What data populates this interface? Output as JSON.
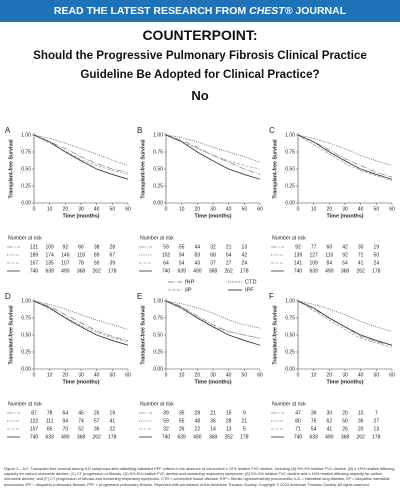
{
  "header": {
    "banner": [
      "READ THE LATEST RESEARCH FROM ",
      "CHEST®",
      " JOURNAL"
    ],
    "kicker": "COUNTERPOINT:",
    "title": "Should the Progressive Pulmonary Fibrosis Clinical Practice Guideline Be Adopted for Clinical Practice?",
    "answer": "No"
  },
  "chart_data": [
    {
      "type": "line",
      "label": "A",
      "ylabel": "Transplant-free Survival",
      "xlabel": "Time (months)",
      "risk_title": "Number at risk",
      "x": [
        0,
        10,
        20,
        30,
        40,
        50,
        60
      ],
      "xlim": [
        0,
        60
      ],
      "ylim": [
        0,
        1
      ],
      "xticks": [
        0,
        10,
        20,
        30,
        40,
        50,
        60
      ],
      "yticks": [
        {
          "value": 1,
          "label": "1.00"
        },
        {
          "value": 0.75,
          "label": "0.75"
        },
        {
          "value": 0.5,
          "label": "0.50"
        },
        {
          "value": 0.25,
          "label": "0.25"
        },
        {
          "value": 0,
          "label": "0.00"
        }
      ],
      "series": [
        {
          "name": "fHP",
          "color": "#7f8c99",
          "values": [
            1,
            0.9,
            0.8,
            0.68,
            0.58,
            0.5,
            0.45
          ],
          "at_risk": [
            121,
            109,
            92,
            66,
            38,
            28
          ]
        },
        {
          "name": "CTD",
          "color": "#55606b",
          "values": [
            1,
            0.95,
            0.88,
            0.8,
            0.72,
            0.63,
            0.55
          ],
          "at_risk": [
            189,
            174,
            146,
            118,
            89,
            67
          ]
        },
        {
          "name": "iIP",
          "color": "#9aa4ae",
          "values": [
            1,
            0.88,
            0.76,
            0.64,
            0.55,
            0.48,
            0.42
          ],
          "at_risk": [
            167,
            135,
            107,
            78,
            59,
            39
          ]
        },
        {
          "name": "IPF",
          "color": "#2e3338",
          "values": [
            1,
            0.9,
            0.75,
            0.62,
            0.5,
            0.42,
            0.35
          ],
          "at_risk": [
            740,
            639,
            490,
            368,
            262,
            178
          ]
        }
      ]
    },
    {
      "type": "line",
      "label": "B",
      "ylabel": "Transplant-free Survival",
      "xlabel": "Time (months)",
      "risk_title": "Number at risk",
      "x": [
        0,
        10,
        20,
        30,
        40,
        50,
        60
      ],
      "xlim": [
        0,
        60
      ],
      "ylim": [
        0,
        1
      ],
      "xticks": [
        0,
        10,
        20,
        30,
        40,
        50,
        60
      ],
      "yticks": [
        {
          "value": 1,
          "label": "1.00"
        },
        {
          "value": 0.75,
          "label": "0.75"
        },
        {
          "value": 0.5,
          "label": "0.50"
        },
        {
          "value": 0.25,
          "label": "0.25"
        },
        {
          "value": 0,
          "label": "0.00"
        }
      ],
      "series": [
        {
          "name": "fHP",
          "color": "#7f8c99",
          "values": [
            1,
            0.92,
            0.82,
            0.7,
            0.6,
            0.5,
            0.42
          ],
          "at_risk": [
            59,
            55,
            44,
            32,
            21,
            13
          ]
        },
        {
          "name": "CTD",
          "color": "#55606b",
          "values": [
            1,
            0.96,
            0.9,
            0.82,
            0.75,
            0.68,
            0.6
          ],
          "at_risk": [
            102,
            94,
            83,
            68,
            54,
            42
          ]
        },
        {
          "name": "iIP",
          "color": "#9aa4ae",
          "values": [
            1,
            0.9,
            0.8,
            0.7,
            0.62,
            0.55,
            0.5
          ],
          "at_risk": [
            64,
            54,
            43,
            37,
            27,
            24
          ]
        },
        {
          "name": "IPF",
          "color": "#2e3338",
          "values": [
            1,
            0.9,
            0.75,
            0.62,
            0.5,
            0.42,
            0.35
          ],
          "at_risk": [
            740,
            639,
            490,
            368,
            262,
            178
          ]
        }
      ]
    },
    {
      "type": "line",
      "label": "C",
      "ylabel": "Transplant-free Survival",
      "xlabel": "Time (months)",
      "risk_title": "Number at risk",
      "x": [
        0,
        10,
        20,
        30,
        40,
        50,
        60
      ],
      "xlim": [
        0,
        60
      ],
      "ylim": [
        0,
        1
      ],
      "xticks": [
        0,
        10,
        20,
        30,
        40,
        50,
        60
      ],
      "yticks": [
        {
          "value": 1,
          "label": "1.00"
        },
        {
          "value": 0.75,
          "label": "0.75"
        },
        {
          "value": 0.5,
          "label": "0.50"
        },
        {
          "value": 0.25,
          "label": "0.25"
        },
        {
          "value": 0,
          "label": "0.00"
        }
      ],
      "series": [
        {
          "name": "fHP",
          "color": "#7f8c99",
          "values": [
            1,
            0.9,
            0.78,
            0.65,
            0.55,
            0.45,
            0.38
          ],
          "at_risk": [
            92,
            77,
            60,
            42,
            30,
            19
          ]
        },
        {
          "name": "CTD",
          "color": "#55606b",
          "values": [
            1,
            0.95,
            0.88,
            0.8,
            0.7,
            0.62,
            0.55
          ],
          "at_risk": [
            139,
            127,
            110,
            92,
            71,
            50
          ]
        },
        {
          "name": "iIP",
          "color": "#9aa4ae",
          "values": [
            1,
            0.86,
            0.72,
            0.58,
            0.48,
            0.4,
            0.33
          ],
          "at_risk": [
            141,
            109,
            84,
            54,
            41,
            24
          ]
        },
        {
          "name": "IPF",
          "color": "#2e3338",
          "values": [
            1,
            0.9,
            0.75,
            0.62,
            0.5,
            0.42,
            0.35
          ],
          "at_risk": [
            740,
            639,
            490,
            368,
            262,
            178
          ]
        }
      ]
    },
    {
      "type": "line",
      "label": "D",
      "ylabel": "Transplant-free Survival",
      "xlabel": "Time (months)",
      "risk_title": "Number at risk",
      "x": [
        0,
        10,
        20,
        30,
        40,
        50,
        60
      ],
      "xlim": [
        0,
        60
      ],
      "ylim": [
        0,
        1
      ],
      "xticks": [
        0,
        10,
        20,
        30,
        40,
        50,
        60
      ],
      "yticks": [
        {
          "value": 1,
          "label": "1.00"
        },
        {
          "value": 0.75,
          "label": "0.75"
        },
        {
          "value": 0.5,
          "label": "0.50"
        },
        {
          "value": 0.25,
          "label": "0.25"
        },
        {
          "value": 0,
          "label": "0.00"
        }
      ],
      "series": [
        {
          "name": "fHP",
          "color": "#7f8c99",
          "values": [
            1,
            0.92,
            0.8,
            0.68,
            0.56,
            0.48,
            0.42
          ],
          "at_risk": [
            87,
            78,
            64,
            45,
            26,
            19
          ]
        },
        {
          "name": "CTD",
          "color": "#55606b",
          "values": [
            1,
            0.95,
            0.88,
            0.8,
            0.72,
            0.65,
            0.58
          ],
          "at_risk": [
            122,
            111,
            94,
            74,
            57,
            41
          ]
        },
        {
          "name": "iIP",
          "color": "#9aa4ae",
          "values": [
            1,
            0.88,
            0.76,
            0.64,
            0.54,
            0.46,
            0.4
          ],
          "at_risk": [
            107,
            85,
            70,
            52,
            36,
            22
          ]
        },
        {
          "name": "IPF",
          "color": "#2e3338",
          "values": [
            1,
            0.9,
            0.75,
            0.62,
            0.5,
            0.42,
            0.35
          ],
          "at_risk": [
            740,
            639,
            490,
            368,
            262,
            178
          ]
        }
      ]
    },
    {
      "type": "line",
      "label": "E",
      "ylabel": "Transplant-free Survival",
      "xlabel": "Time (months)",
      "risk_title": "Number at risk",
      "x": [
        0,
        10,
        20,
        30,
        40,
        50,
        60
      ],
      "xlim": [
        0,
        60
      ],
      "ylim": [
        0,
        1
      ],
      "xticks": [
        0,
        10,
        20,
        30,
        40,
        50,
        60
      ],
      "yticks": [
        {
          "value": 1,
          "label": "1.00"
        },
        {
          "value": 0.75,
          "label": "0.75"
        },
        {
          "value": 0.5,
          "label": "0.50"
        },
        {
          "value": 0.25,
          "label": "0.25"
        },
        {
          "value": 0,
          "label": "0.00"
        }
      ],
      "series": [
        {
          "name": "fHP",
          "color": "#7f8c99",
          "values": [
            1,
            0.92,
            0.78,
            0.65,
            0.55,
            0.5,
            0.45
          ],
          "at_risk": [
            39,
            35,
            28,
            21,
            15,
            9
          ]
        },
        {
          "name": "CTD",
          "color": "#55606b",
          "values": [
            1,
            0.96,
            0.9,
            0.82,
            0.72,
            0.65,
            0.6
          ],
          "at_risk": [
            59,
            55,
            48,
            36,
            28,
            21
          ]
        },
        {
          "name": "iIP",
          "color": "#9aa4ae",
          "values": [
            1,
            0.88,
            0.76,
            0.62,
            0.55,
            0.5,
            0.45
          ],
          "at_risk": [
            32,
            26,
            22,
            14,
            13,
            5
          ]
        },
        {
          "name": "IPF",
          "color": "#2e3338",
          "values": [
            1,
            0.9,
            0.75,
            0.62,
            0.5,
            0.42,
            0.35
          ],
          "at_risk": [
            740,
            639,
            490,
            368,
            262,
            178
          ]
        }
      ]
    },
    {
      "type": "line",
      "label": "F",
      "ylabel": "Transplant-free Survival",
      "xlabel": "Time (months)",
      "risk_title": "Number at risk",
      "x": [
        0,
        10,
        20,
        30,
        40,
        50,
        60
      ],
      "xlim": [
        0,
        60
      ],
      "ylim": [
        0,
        1
      ],
      "xticks": [
        0,
        10,
        20,
        30,
        40,
        50,
        60
      ],
      "yticks": [
        {
          "value": 1,
          "label": "1.00"
        },
        {
          "value": 0.75,
          "label": "0.75"
        },
        {
          "value": 0.5,
          "label": "0.50"
        },
        {
          "value": 0.25,
          "label": "0.25"
        },
        {
          "value": 0,
          "label": "0.00"
        }
      ],
      "series": [
        {
          "name": "fHP",
          "color": "#7f8c99",
          "values": [
            1,
            0.88,
            0.75,
            0.62,
            0.48,
            0.4,
            0.35
          ],
          "at_risk": [
            47,
            39,
            30,
            20,
            10,
            7
          ]
        },
        {
          "name": "CTD",
          "color": "#55606b",
          "values": [
            1,
            0.95,
            0.88,
            0.8,
            0.7,
            0.62,
            0.55
          ],
          "at_risk": [
            80,
            75,
            62,
            50,
            36,
            27
          ]
        },
        {
          "name": "iIP",
          "color": "#9aa4ae",
          "values": [
            1,
            0.86,
            0.72,
            0.58,
            0.45,
            0.38,
            0.32
          ],
          "at_risk": [
            71,
            54,
            41,
            26,
            20,
            13
          ]
        },
        {
          "name": "IPF",
          "color": "#2e3338",
          "values": [
            1,
            0.9,
            0.75,
            0.62,
            0.5,
            0.42,
            0.35
          ],
          "at_risk": [
            740,
            639,
            490,
            368,
            262,
            178
          ]
        }
      ]
    }
  ],
  "caption": "Figure 1 – A-F, Transplant-free survival among ILD subgroups after satisfying validated PPF criteria in the absence of concurrent ≥ 10% relative FVC decline, including (A) 5%-9% relative FVC decline, (B) ≥ 15% relative diffusing capacity for carbon monoxide decline, (C) CT progression of fibrosis, (D) 5%-9% relative FVC decline and worsening respiratory symptoms, (E) 5%-9% relative FVC decline and ≥ 15% relative diffusing capacity for carbon monoxide decline, and (F) CT progression of fibrosis and worsening respiratory symptoms. CTD = connective tissue disease; fHP = fibrotic hypersensitivity pneumonitis; ILD = interstitial lung disease; IIP = idiopathic interstitial pneumonia; IPF = idiopathic pulmonary fibrosis; PPF = progressive pulmonary fibrosis. Reprinted with permission of the American Thoracic Society. Copyright © 2023 American Thoracic Society. All rights reserved."
}
